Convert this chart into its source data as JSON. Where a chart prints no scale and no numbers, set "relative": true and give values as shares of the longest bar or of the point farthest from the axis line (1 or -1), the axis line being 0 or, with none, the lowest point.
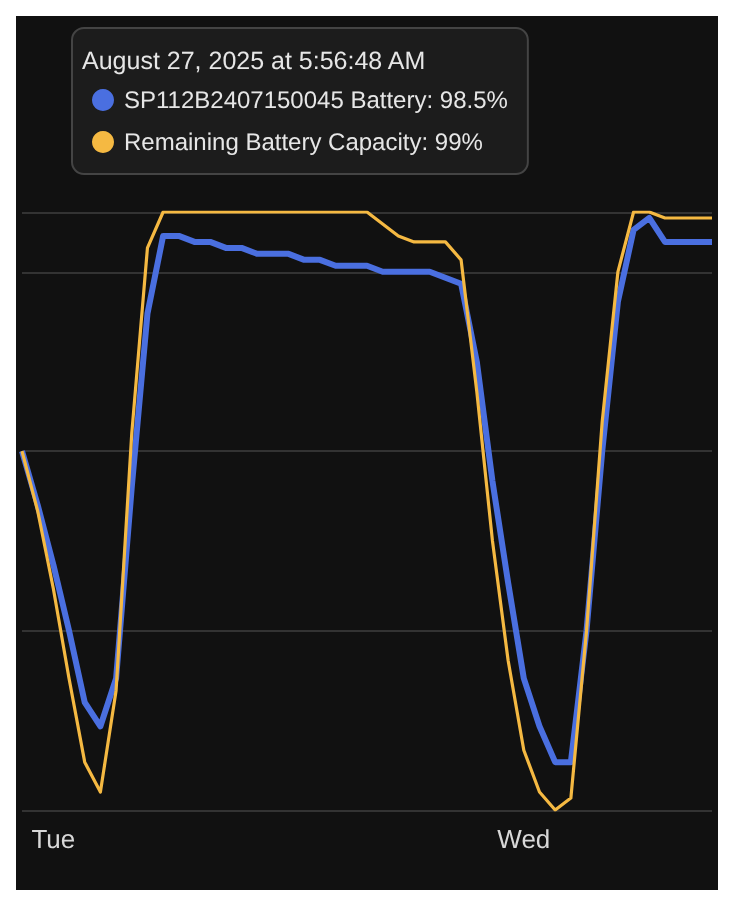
{
  "chart_data": {
    "type": "line",
    "relative": true,
    "grid": "y",
    "legend": "top left",
    "marker": "none",
    "line_style": "solid",
    "annotations": [
      "August 27, 2025 at 5:56:48 AM"
    ],
    "categories": [
      null,
      null,
      "Tue",
      null,
      null,
      null,
      null,
      null,
      null,
      null,
      null,
      null,
      null,
      null,
      null,
      null,
      null,
      null,
      null,
      null,
      null,
      null,
      null,
      null,
      null,
      null,
      null,
      null,
      null,
      null,
      null,
      null,
      "Wed",
      null,
      null,
      null,
      null,
      null,
      null,
      null,
      null,
      null,
      null,
      null,
      null
    ],
    "series": [
      {
        "name": "SP112B2407150045 Battery: 98.5%",
        "color": "#4a6fe0",
        "values": [
          0.6,
          0.51,
          0.41,
          0.3,
          0.18,
          0.14,
          0.22,
          0.54,
          0.83,
          0.96,
          0.96,
          0.95,
          0.95,
          0.94,
          0.94,
          0.93,
          0.93,
          0.93,
          0.92,
          0.92,
          0.91,
          0.91,
          0.91,
          0.9,
          0.9,
          0.9,
          0.9,
          0.89,
          0.88,
          0.75,
          0.55,
          0.38,
          0.22,
          0.14,
          0.08,
          0.08,
          0.3,
          0.6,
          0.85,
          0.97,
          0.99,
          0.95,
          0.95,
          0.95,
          0.95
        ]
      },
      {
        "name": "Remaining Battery Capacity: 99%",
        "color": "#f5b942",
        "values": [
          0.6,
          0.5,
          0.37,
          0.22,
          0.08,
          0.03,
          0.2,
          0.63,
          0.94,
          1,
          1,
          1,
          1,
          1,
          1,
          1,
          1,
          1,
          1,
          1,
          1,
          1,
          1,
          0.98,
          0.96,
          0.95,
          0.95,
          0.95,
          0.92,
          0.7,
          0.45,
          0.25,
          0.1,
          0.03,
          0,
          0.02,
          0.3,
          0.65,
          0.9,
          1,
          1,
          0.99,
          0.99,
          0.99,
          0.99
        ]
      }
    ]
  }
}
